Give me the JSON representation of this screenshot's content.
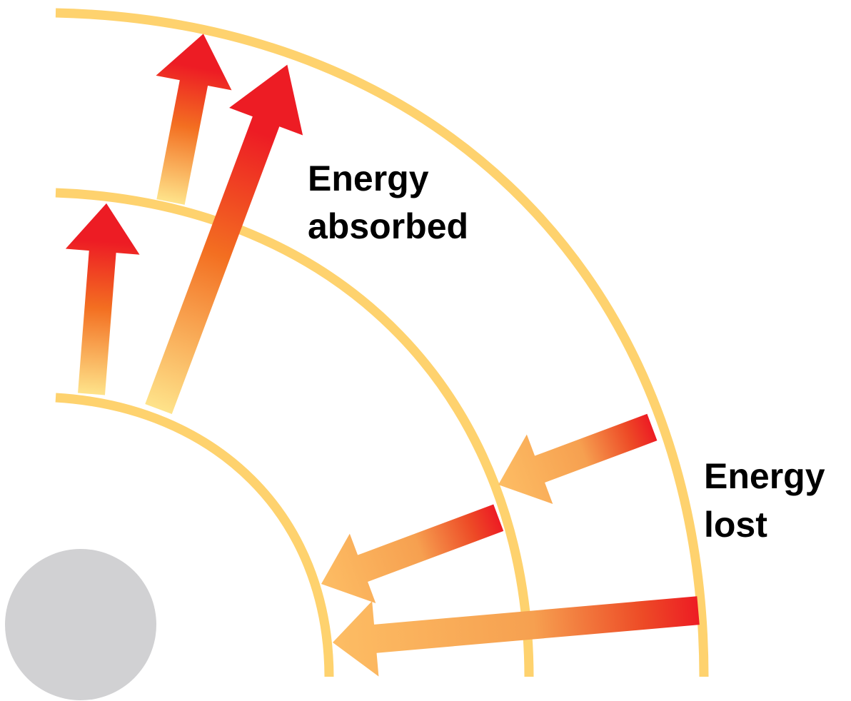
{
  "labels": {
    "absorbed": [
      "Energy",
      "absorbed"
    ],
    "lost": [
      "Energy",
      "lost"
    ]
  },
  "colors": {
    "orbit": "#FED26E",
    "arrow_red": "#ED1C24",
    "arrow_orange": "#F36F21",
    "arrow_light": "#FDBD64",
    "arrow_pale": "#FEE38A",
    "nucleus": "#D1D1D3"
  },
  "elements": {
    "nucleus": "nucleus",
    "orbits": [
      "orbit-1",
      "orbit-2",
      "orbit-3"
    ],
    "absorption_arrows": [
      "1-to-2",
      "1-to-3",
      "2-to-3"
    ],
    "emission_arrows": [
      "3-to-2",
      "2-to-1",
      "3-to-1"
    ]
  }
}
